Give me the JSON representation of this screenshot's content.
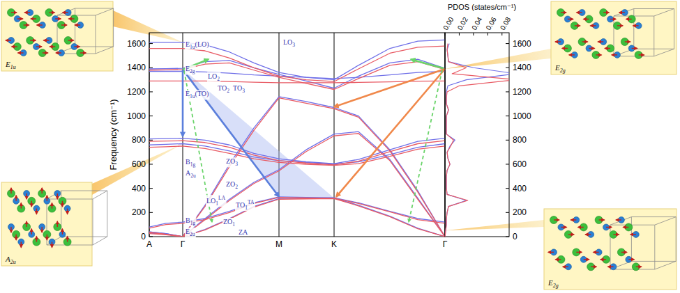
{
  "chart_data": [
    {
      "type": "line",
      "x": [
        0,
        0.24,
        0.48,
        0.8,
        1.15,
        1.5,
        1.86,
        2.25,
        2.65,
        3.0,
        3.45,
        3.85,
        4.24
      ],
      "xlim": [
        0,
        4.24
      ],
      "xticks": [
        {
          "value": 0,
          "label": "A"
        },
        {
          "value": 0.48,
          "label": "Γ"
        },
        {
          "value": 1.86,
          "label": "M"
        },
        {
          "value": 2.65,
          "label": "K"
        },
        {
          "value": 4.24,
          "label": "Γ"
        }
      ],
      "ylim": [
        0,
        1690
      ],
      "yticks": [
        0,
        200,
        400,
        600,
        800,
        1000,
        1200,
        1400,
        1600
      ],
      "ylabel": "Frequency (cm⁻¹)",
      "grid": "x",
      "series": [
        {
          "color": "#7070e8",
          "values": [
            30,
            20,
            0,
            60,
            150,
            250,
            315,
            318,
            320,
            260,
            170,
            70,
            0
          ]
        },
        {
          "color": "#7070e8",
          "values": [
            80,
            110,
            120,
            150,
            210,
            280,
            330,
            325,
            322,
            280,
            210,
            150,
            120
          ]
        },
        {
          "color": "#7070e8",
          "values": [
            40,
            25,
            0,
            150,
            310,
            450,
            555,
            720,
            850,
            870,
            640,
            320,
            0
          ]
        },
        {
          "color": "#7070e8",
          "values": [
            40,
            25,
            0,
            260,
            600,
            900,
            1160,
            1120,
            1070,
            1000,
            720,
            380,
            0
          ]
        },
        {
          "color": "#7070e8",
          "values": [
            760,
            765,
            770,
            750,
            710,
            660,
            630,
            615,
            600,
            620,
            680,
            740,
            770
          ]
        },
        {
          "color": "#7070e8",
          "values": [
            810,
            812,
            815,
            800,
            760,
            690,
            645,
            620,
            605,
            640,
            720,
            790,
            815
          ]
        },
        {
          "color": "#7070e8",
          "values": [
            1370,
            1370,
            1370,
            1365,
            1355,
            1340,
            1330,
            1320,
            1310,
            1320,
            1340,
            1360,
            1370
          ]
        },
        {
          "color": "#7070e8",
          "values": [
            1390,
            1392,
            1395,
            1450,
            1460,
            1400,
            1345,
            1290,
            1230,
            1330,
            1440,
            1470,
            1395
          ]
        },
        {
          "color": "#7070e8",
          "values": [
            1610,
            1610,
            1610,
            1590,
            1530,
            1440,
            1360,
            1320,
            1300,
            1420,
            1560,
            1620,
            1630
          ]
        },
        {
          "color": "#e85a64",
          "values": [
            25,
            15,
            0,
            55,
            145,
            245,
            310,
            313,
            315,
            255,
            165,
            65,
            0
          ]
        },
        {
          "color": "#e85a64",
          "values": [
            70,
            100,
            110,
            140,
            200,
            275,
            325,
            320,
            318,
            275,
            205,
            140,
            110
          ]
        },
        {
          "color": "#e85a64",
          "values": [
            35,
            20,
            0,
            140,
            300,
            440,
            545,
            705,
            835,
            855,
            630,
            310,
            0
          ]
        },
        {
          "color": "#e85a64",
          "values": [
            35,
            20,
            0,
            250,
            580,
            880,
            1150,
            1105,
            1060,
            990,
            710,
            370,
            0
          ]
        },
        {
          "color": "#e85a64",
          "values": [
            740,
            745,
            750,
            730,
            690,
            645,
            615,
            600,
            590,
            605,
            665,
            725,
            750
          ]
        },
        {
          "color": "#e85a64",
          "values": [
            790,
            792,
            795,
            780,
            740,
            675,
            630,
            610,
            595,
            625,
            705,
            770,
            795
          ]
        },
        {
          "color": "#e85a64",
          "values": [
            1290,
            1290,
            1290,
            1290,
            1285,
            1280,
            1275,
            1275,
            1275,
            1278,
            1283,
            1288,
            1290
          ]
        },
        {
          "color": "#e85a64",
          "values": [
            1380,
            1382,
            1385,
            1430,
            1440,
            1380,
            1320,
            1270,
            1220,
            1310,
            1420,
            1450,
            1385
          ]
        },
        {
          "color": "#e85a64",
          "values": [
            1560,
            1560,
            1560,
            1540,
            1480,
            1400,
            1330,
            1300,
            1285,
            1390,
            1520,
            1570,
            1580
          ]
        }
      ],
      "annotations": [
        {
          "text": "E",
          "sub": "1u",
          "tail": "(LO)",
          "x": 0.52,
          "y": 1577
        },
        {
          "text": "LO",
          "sub": "3",
          "x": 1.92,
          "y": 1590
        },
        {
          "text": "E",
          "sub": "2g",
          "x": 0.52,
          "y": 1370
        },
        {
          "text": "LO",
          "sub": "2",
          "x": 0.84,
          "y": 1312
        },
        {
          "text": "E",
          "sub": "1u",
          "tail": "(TO)",
          "x": 0.52,
          "y": 1163
        },
        {
          "text": "TO",
          "sub": "2",
          "x": 0.98,
          "y": 1209
        },
        {
          "text": "TO",
          "sub": "3",
          "x": 1.2,
          "y": 1209
        },
        {
          "text": "B",
          "sub": "1g",
          "x": 0.52,
          "y": 599
        },
        {
          "text": "ZO",
          "sub": "3",
          "x": 1.1,
          "y": 604
        },
        {
          "text": "A",
          "sub": "2u",
          "x": 0.52,
          "y": 506
        },
        {
          "text": "ZO",
          "sub": "2",
          "x": 1.1,
          "y": 414
        },
        {
          "text": "TO",
          "sub": "1",
          "sup": "TA",
          "x": 1.24,
          "y": 242
        },
        {
          "text": "LO",
          "sub": "1",
          "sup": "LA",
          "x": 0.82,
          "y": 276
        },
        {
          "text": "B",
          "sub": "1g",
          "x": 0.52,
          "y": 115
        },
        {
          "text": "ZO",
          "sub": "1",
          "x": 1.06,
          "y": 104
        },
        {
          "text": "E",
          "sub": "2u",
          "x": 0.52,
          "y": 23
        },
        {
          "text": "ZA",
          "x": 1.28,
          "y": 17
        }
      ],
      "arrows": [
        {
          "from": [
            0.48,
            1385
          ],
          "to": [
            0.48,
            830
          ],
          "color": "#5b7fdc",
          "line_style": "solid"
        },
        {
          "from": [
            0.48,
            1385
          ],
          "to": [
            1.86,
            330
          ],
          "color": "#5b7fdc",
          "line_style": "solid"
        },
        {
          "from": [
            0.48,
            1385
          ],
          "to": [
            0.85,
            1470
          ],
          "color": "#6ad46a",
          "line_style": "solid"
        },
        {
          "from": [
            0.5,
            1375
          ],
          "to": [
            0.9,
            120
          ],
          "color": "#6ad46a",
          "line_style": "dashed"
        },
        {
          "from": [
            4.24,
            1390
          ],
          "to": [
            2.65,
            1075
          ],
          "color": "#f0884a",
          "line_style": "solid"
        },
        {
          "from": [
            4.24,
            1390
          ],
          "to": [
            2.68,
            330
          ],
          "color": "#f0884a",
          "line_style": "solid"
        },
        {
          "from": [
            4.22,
            1395
          ],
          "to": [
            3.75,
            1470
          ],
          "color": "#6ad46a",
          "line_style": "solid"
        },
        {
          "from": [
            4.2,
            1380
          ],
          "to": [
            3.72,
            120
          ],
          "color": "#6ad46a",
          "line_style": "dashed"
        }
      ],
      "shaded_regions": [
        {
          "points": [
            [
              0.48,
              1390
            ],
            [
              1.86,
              320
            ],
            [
              2.65,
              320
            ]
          ],
          "color": "#a9b9f2"
        }
      ],
      "insets": [
        {
          "text": "E",
          "sub": "1u",
          "target": [
            0.48,
            1610
          ]
        },
        {
          "text": "A",
          "sub": "2u",
          "target": [
            0.48,
            770
          ]
        },
        {
          "text": "E",
          "sub": "2g",
          "target": [
            4.24,
            1390
          ]
        },
        {
          "text": "E",
          "sub": "2g",
          "target": [
            4.24,
            50
          ]
        }
      ]
    },
    {
      "type": "line",
      "orientation": "horizontal",
      "x": [
        0,
        50,
        100,
        150,
        200,
        250,
        300,
        350,
        400,
        450,
        500,
        550,
        600,
        650,
        700,
        750,
        800,
        850,
        900,
        950,
        1000,
        1050,
        1100,
        1150,
        1200,
        1250,
        1300,
        1350,
        1400,
        1450,
        1500,
        1550,
        1600
      ],
      "xlim": [
        0,
        1690
      ],
      "xticks": [
        0,
        200,
        400,
        600,
        800,
        1000,
        1200,
        1400,
        1600
      ],
      "ylim": [
        0,
        0.09
      ],
      "yticks": [
        {
          "value": 0,
          "label": "0.00"
        },
        {
          "value": 0.02,
          "label": "0.02"
        },
        {
          "value": 0.04,
          "label": "0.04"
        },
        {
          "value": 0.06,
          "label": "0.06"
        },
        {
          "value": 0.08,
          "label": "0.08"
        }
      ],
      "ylabel": "PDOS (states/cm⁻¹)",
      "series": [
        {
          "color": "#7070e8",
          "values": [
            0,
            0.001,
            0.002,
            0.002,
            0.003,
            0.005,
            0.03,
            0.003,
            0.002,
            0.002,
            0.002,
            0.003,
            0.007,
            0.004,
            0.003,
            0.007,
            0.014,
            0.002,
            0.002,
            0.002,
            0.002,
            0.005,
            0.002,
            0.002,
            0.002,
            0.004,
            0.03,
            0.1,
            0.04,
            0.005,
            0.004,
            0.003,
            0.006
          ]
        },
        {
          "color": "#e85a64",
          "values": [
            0,
            0.001,
            0.002,
            0.002,
            0.003,
            0.005,
            0.032,
            0.003,
            0.002,
            0.002,
            0.002,
            0.003,
            0.007,
            0.004,
            0.003,
            0.008,
            0.012,
            0.002,
            0.002,
            0.002,
            0.002,
            0.005,
            0.002,
            0.002,
            0.003,
            0.02,
            0.1,
            0.01,
            0.03,
            0.005,
            0.004,
            0.003,
            0.004
          ]
        }
      ]
    }
  ]
}
